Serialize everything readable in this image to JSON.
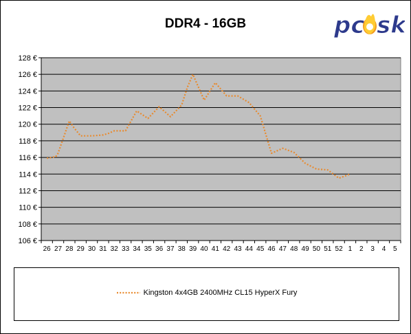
{
  "logo": {
    "text_left": "pc",
    "text_right": "sk",
    "colors": {
      "text": "#2d3a8c",
      "flame": "#f39a1e"
    }
  },
  "colors": {
    "plot_bg": "#c0c0c0",
    "series": "#e88a2e",
    "grid": "#000000"
  },
  "chart_data": {
    "type": "line",
    "title": "DDR4 - 16GB",
    "xlabel": "",
    "ylabel": "",
    "categories": [
      "26",
      "27",
      "28",
      "29",
      "30",
      "31",
      "32",
      "33",
      "34",
      "35",
      "36",
      "37",
      "38",
      "39",
      "40",
      "41",
      "42",
      "43",
      "44",
      "45",
      "46",
      "47",
      "48",
      "49",
      "50",
      "51",
      "52",
      "1",
      "2",
      "3",
      "4",
      "5"
    ],
    "ylim": [
      106,
      128
    ],
    "yticks": [
      "106 €",
      "108 €",
      "110 €",
      "112 €",
      "114 €",
      "116 €",
      "118 €",
      "120 €",
      "122 €",
      "124 €",
      "126 €",
      "128 €"
    ],
    "grid": true,
    "legend_position": "bottom",
    "series": [
      {
        "name": "Kingston 4x4GB 2400MHz CL15 HyperX Fury",
        "line_style": "dotted",
        "x": [
          26,
          26.8,
          27,
          28,
          28.4,
          29,
          30,
          31,
          31.5,
          32,
          33,
          34,
          35,
          36,
          37,
          38,
          38.5,
          39,
          40,
          41,
          42,
          43,
          44,
          45,
          46,
          47,
          48,
          49,
          50,
          51,
          52,
          1
        ],
        "values": [
          115.9,
          116.1,
          116.5,
          120.4,
          119.6,
          118.6,
          118.6,
          118.7,
          118.9,
          119.2,
          119.2,
          121.6,
          120.7,
          122.1,
          120.9,
          122.3,
          124.4,
          126.0,
          122.9,
          125.0,
          123.4,
          123.4,
          122.6,
          121.0,
          116.5,
          117.1,
          116.6,
          115.3,
          114.6,
          114.5,
          113.5,
          114.0
        ]
      }
    ]
  }
}
